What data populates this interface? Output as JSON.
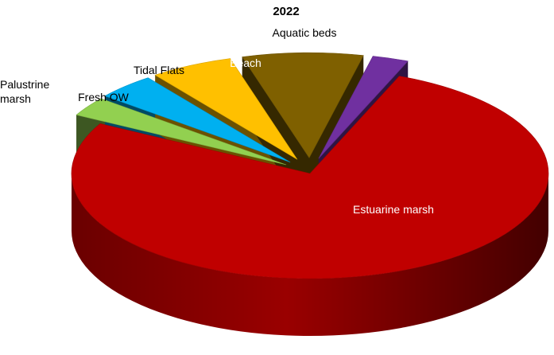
{
  "chart_data": {
    "type": "pie",
    "title": "2022",
    "three_d": true,
    "legend": "none",
    "slices": [
      {
        "label": "Estuarine marsh",
        "value": 75.0,
        "color": "#c00000",
        "exploded": false
      },
      {
        "label": "Palustrine marsh",
        "value": 2.9,
        "color": "#92d050",
        "exploded": true
      },
      {
        "label": "Fresh OW",
        "value": 3.9,
        "color": "#00b0f0",
        "exploded": true
      },
      {
        "label": "Tidal Flats",
        "value": 5.5,
        "color": "#ffc000",
        "exploded": true
      },
      {
        "label": "Beach",
        "value": 8.0,
        "color": "#7f6000",
        "exploded": true
      },
      {
        "label": "Aquatic beds",
        "value": 2.4,
        "color": "#7030a0",
        "exploded": true
      }
    ]
  }
}
